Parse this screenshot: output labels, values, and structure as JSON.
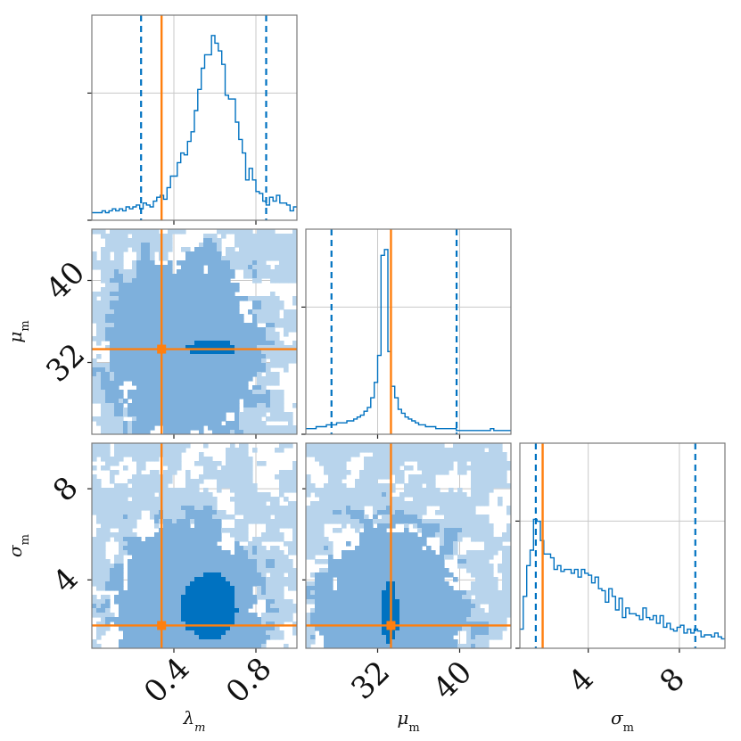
{
  "colors": {
    "posterior": "#0072c1",
    "truth": "#ff7f0e",
    "contour_light": "#b8d4ec",
    "contour_mid": "#7eb0dc",
    "contour_dark": "#0072c1"
  },
  "chart_data": {
    "type": "corner",
    "grid": true,
    "parameters": [
      {
        "key": "lambda",
        "label": "λ_m",
        "range": [
          0.0,
          1.0
        ],
        "ticks": [
          0.4,
          0.8
        ],
        "tick_labels": [
          "0.4",
          "0.8"
        ],
        "truth": 0.34,
        "interval": [
          0.24,
          0.85
        ]
      },
      {
        "key": "mu",
        "label": "μ_m",
        "range": [
          25.0,
          45.0
        ],
        "ticks": [
          32,
          40
        ],
        "tick_labels": [
          "32",
          "40"
        ],
        "truth": 33.3,
        "interval": [
          27.5,
          39.7
        ]
      },
      {
        "key": "sigma",
        "label": "σ_m",
        "range": [
          1.0,
          10.0
        ],
        "ticks": [
          4,
          8
        ],
        "tick_labels": [
          "4",
          "8"
        ],
        "truth": 2.0,
        "interval": [
          1.7,
          8.7
        ]
      }
    ],
    "marginals": {
      "lambda": [
        0.03,
        0.03,
        0.03,
        0.04,
        0.03,
        0.04,
        0.05,
        0.04,
        0.05,
        0.04,
        0.06,
        0.05,
        0.06,
        0.07,
        0.05,
        0.08,
        0.07,
        0.06,
        0.09,
        0.11,
        0.12,
        0.1,
        0.16,
        0.22,
        0.22,
        0.29,
        0.34,
        0.33,
        0.4,
        0.45,
        0.56,
        0.67,
        0.78,
        0.85,
        0.85,
        0.95,
        0.91,
        0.87,
        0.8,
        0.64,
        0.62,
        0.62,
        0.5,
        0.41,
        0.34,
        0.2,
        0.26,
        0.2,
        0.14,
        0.13,
        0.09,
        0.07,
        0.11,
        0.09,
        0.12,
        0.08,
        0.08,
        0.07,
        0.04,
        0.06
      ],
      "mu": [
        0.02,
        0.02,
        0.02,
        0.03,
        0.03,
        0.03,
        0.04,
        0.04,
        0.04,
        0.05,
        0.05,
        0.05,
        0.06,
        0.06,
        0.07,
        0.08,
        0.09,
        0.11,
        0.13,
        0.18,
        0.26,
        0.4,
        0.92,
        0.95,
        0.42,
        0.24,
        0.18,
        0.12,
        0.1,
        0.08,
        0.07,
        0.06,
        0.05,
        0.04,
        0.04,
        0.03,
        0.03,
        0.03,
        0.02,
        0.02,
        0.02,
        0.02,
        0.02,
        0.02,
        0.01,
        0.01,
        0.01,
        0.01,
        0.01,
        0.01,
        0.01,
        0.01,
        0.01,
        0.01,
        0.02,
        0.01,
        0.01,
        0.01,
        0.01,
        0.01
      ],
      "sigma": [
        0.09,
        0.26,
        0.42,
        0.5,
        0.66,
        0.65,
        0.55,
        0.48,
        0.48,
        0.46,
        0.4,
        0.42,
        0.39,
        0.4,
        0.4,
        0.38,
        0.4,
        0.36,
        0.4,
        0.38,
        0.37,
        0.33,
        0.36,
        0.3,
        0.29,
        0.23,
        0.3,
        0.26,
        0.19,
        0.25,
        0.15,
        0.2,
        0.17,
        0.17,
        0.16,
        0.14,
        0.2,
        0.15,
        0.14,
        0.16,
        0.12,
        0.16,
        0.1,
        0.12,
        0.09,
        0.08,
        0.1,
        0.11,
        0.07,
        0.09,
        0.07,
        0.09,
        0.08,
        0.05,
        0.06,
        0.06,
        0.05,
        0.07,
        0.05,
        0.04
      ]
    },
    "joint_2d": [
      {
        "x": "lambda",
        "y": "mu",
        "core": {
          "x": [
            0.46,
            0.7
          ],
          "y": [
            32.6,
            34.1
          ]
        }
      },
      {
        "x": "lambda",
        "y": "sigma",
        "core": {
          "x": [
            0.43,
            0.71
          ],
          "y": [
            1.4,
            4.2
          ]
        }
      },
      {
        "x": "mu",
        "y": "sigma",
        "core": {
          "x": [
            32.3,
            34.0
          ],
          "y": [
            1.2,
            4.0
          ]
        }
      }
    ]
  }
}
